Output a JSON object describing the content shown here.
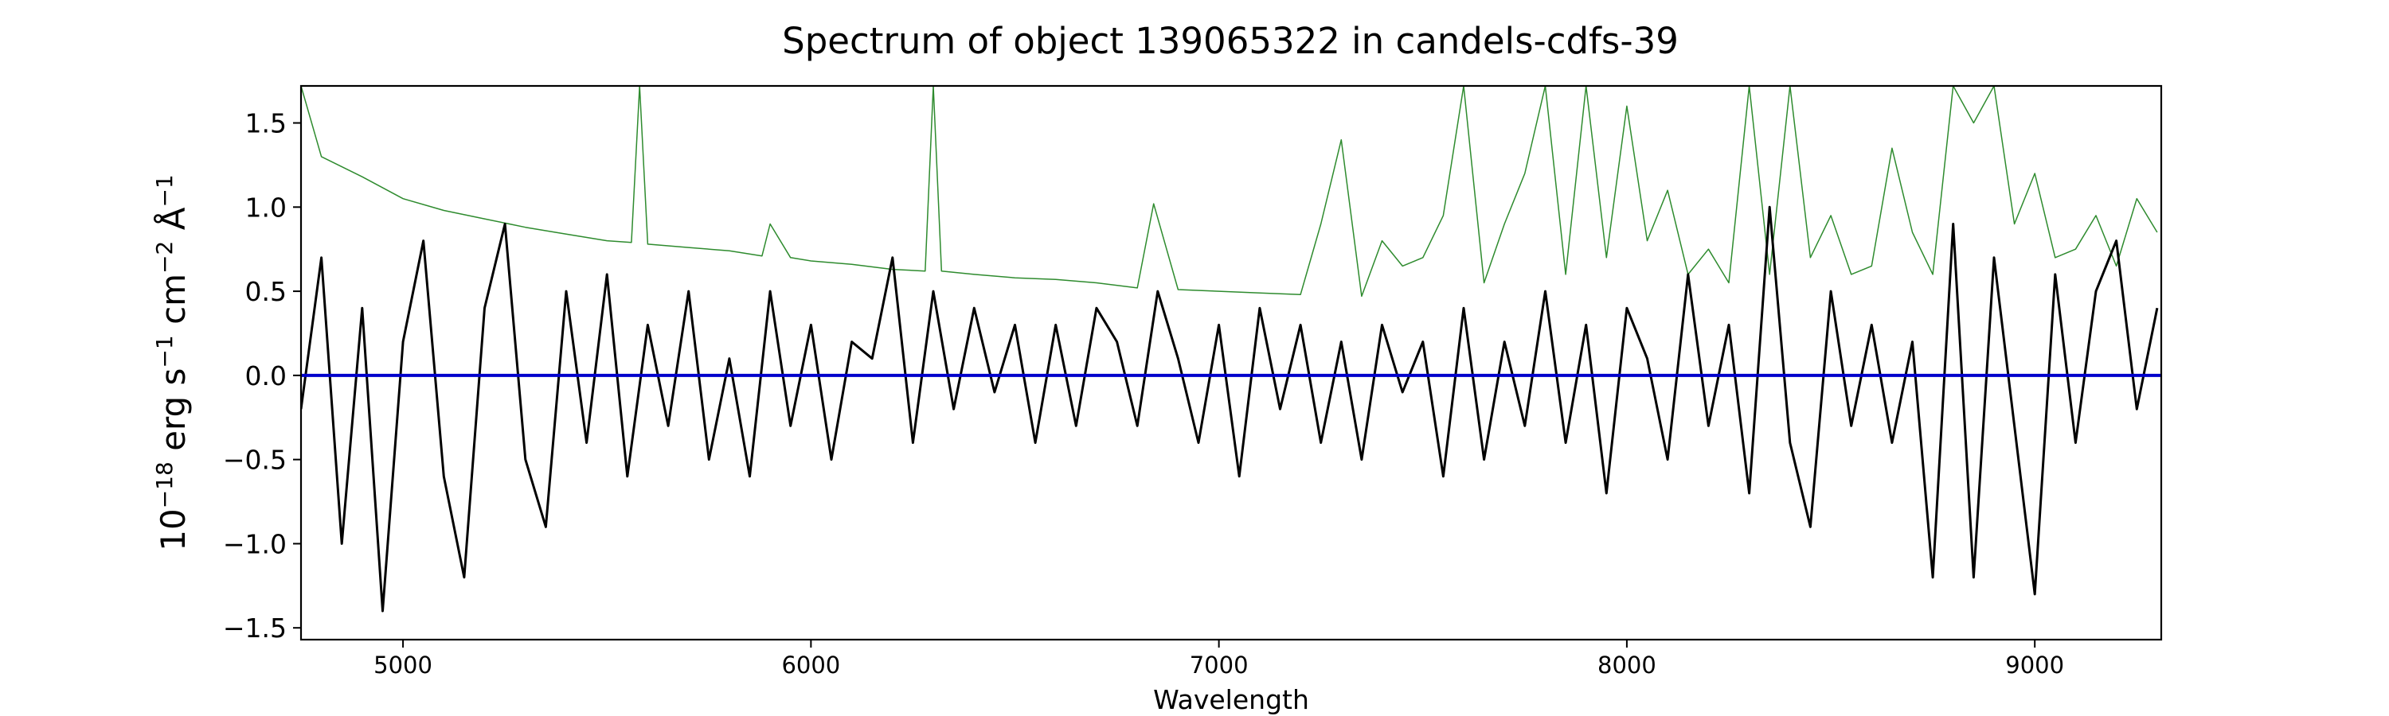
{
  "chart_data": {
    "type": "line",
    "title": "Spectrum of object 139065322 in candels-cdfs-39",
    "xlabel": "Wavelength",
    "ylabel_base": "10",
    "ylabel_exp": "−18",
    "ylabel_unit_erg": " erg s",
    "ylabel_exp_s": "−1",
    "ylabel_unit_cm": " cm",
    "ylabel_exp_cm": "−2",
    "ylabel_unit_A": " Å",
    "ylabel_exp_A": "−1",
    "xlim": [
      4750,
      9310
    ],
    "ylim": [
      -1.57,
      1.72
    ],
    "x_ticks": [
      5000,
      6000,
      7000,
      8000,
      9000
    ],
    "x_tick_labels": [
      "5000",
      "6000",
      "7000",
      "8000",
      "9000"
    ],
    "y_ticks": [
      -1.5,
      -1.0,
      -0.5,
      0.0,
      0.5,
      1.0,
      1.5
    ],
    "y_tick_labels": [
      "−1.5",
      "−1.0",
      "−0.5",
      "0.0",
      "0.5",
      "1.0",
      "1.5"
    ],
    "grid": false,
    "colors": {
      "flux": "#000000",
      "noise": "#2e8b2e",
      "zero": "#0000cc"
    },
    "series": [
      {
        "role": "flux",
        "x": [
          4750,
          4800,
          4850,
          4900,
          4950,
          5000,
          5050,
          5100,
          5150,
          5200,
          5250,
          5300,
          5350,
          5400,
          5450,
          5500,
          5550,
          5600,
          5650,
          5700,
          5750,
          5800,
          5850,
          5900,
          5950,
          6000,
          6050,
          6100,
          6150,
          6200,
          6250,
          6300,
          6350,
          6400,
          6450,
          6500,
          6550,
          6600,
          6650,
          6700,
          6750,
          6800,
          6850,
          6900,
          6950,
          7000,
          7050,
          7100,
          7150,
          7200,
          7250,
          7300,
          7350,
          7400,
          7450,
          7500,
          7550,
          7600,
          7650,
          7700,
          7750,
          7800,
          7850,
          7900,
          7950,
          8000,
          8050,
          8100,
          8150,
          8200,
          8250,
          8300,
          8350,
          8400,
          8450,
          8500,
          8550,
          8600,
          8650,
          8700,
          8750,
          8800,
          8850,
          8900,
          8950,
          9000,
          9050,
          9100,
          9150,
          9200,
          9250,
          9300
        ],
        "y": [
          -0.2,
          0.7,
          -1.0,
          0.4,
          -1.4,
          0.2,
          0.8,
          -0.6,
          -1.2,
          0.4,
          0.9,
          -0.5,
          -0.9,
          0.5,
          -0.4,
          0.6,
          -0.6,
          0.3,
          -0.3,
          0.5,
          -0.5,
          0.1,
          -0.6,
          0.5,
          -0.3,
          0.3,
          -0.5,
          0.2,
          0.1,
          0.7,
          -0.4,
          0.5,
          -0.2,
          0.4,
          -0.1,
          0.3,
          -0.4,
          0.3,
          -0.3,
          0.4,
          0.2,
          -0.3,
          0.5,
          0.1,
          -0.4,
          0.3,
          -0.6,
          0.4,
          -0.2,
          0.3,
          -0.4,
          0.2,
          -0.5,
          0.3,
          -0.1,
          0.2,
          -0.6,
          0.4,
          -0.5,
          0.2,
          -0.3,
          0.5,
          -0.4,
          0.3,
          -0.7,
          0.4,
          0.1,
          -0.5,
          0.6,
          -0.3,
          0.3,
          -0.7,
          1.0,
          -0.4,
          -0.9,
          0.5,
          -0.3,
          0.3,
          -0.4,
          0.2,
          -1.2,
          0.9,
          -1.2,
          0.7,
          -0.3,
          -1.3,
          0.6,
          -0.4,
          0.5,
          0.8,
          -0.2,
          0.4
        ]
      },
      {
        "role": "noise",
        "x": [
          4750,
          4800,
          4900,
          5000,
          5100,
          5200,
          5300,
          5400,
          5500,
          5560,
          5580,
          5600,
          5700,
          5800,
          5880,
          5900,
          5950,
          6000,
          6100,
          6200,
          6280,
          6300,
          6320,
          6400,
          6500,
          6600,
          6700,
          6800,
          6840,
          6900,
          7000,
          7100,
          7200,
          7250,
          7300,
          7350,
          7400,
          7450,
          7500,
          7550,
          7600,
          7650,
          7700,
          7750,
          7800,
          7850,
          7900,
          7950,
          8000,
          8050,
          8100,
          8150,
          8200,
          8250,
          8300,
          8350,
          8400,
          8450,
          8500,
          8550,
          8600,
          8650,
          8700,
          8750,
          8800,
          8850,
          8900,
          8950,
          9000,
          9050,
          9100,
          9150,
          9200,
          9250,
          9300
        ],
        "y": [
          1.72,
          1.3,
          1.18,
          1.05,
          0.98,
          0.93,
          0.88,
          0.84,
          0.8,
          0.79,
          1.72,
          0.78,
          0.76,
          0.74,
          0.71,
          0.9,
          0.7,
          0.68,
          0.66,
          0.63,
          0.62,
          1.72,
          0.62,
          0.6,
          0.58,
          0.57,
          0.55,
          0.52,
          1.02,
          0.51,
          0.5,
          0.49,
          0.48,
          0.9,
          1.4,
          0.47,
          0.8,
          0.65,
          0.7,
          0.95,
          1.72,
          0.55,
          0.9,
          1.2,
          1.72,
          0.6,
          1.72,
          0.7,
          1.6,
          0.8,
          1.1,
          0.6,
          0.75,
          0.55,
          1.72,
          0.6,
          1.72,
          0.7,
          0.95,
          0.6,
          0.65,
          1.35,
          0.85,
          0.6,
          1.72,
          1.5,
          1.72,
          0.9,
          1.2,
          0.7,
          0.75,
          0.95,
          0.65,
          1.05,
          0.85
        ]
      },
      {
        "role": "zero",
        "x": [
          4750,
          9310
        ],
        "y": [
          0,
          0
        ]
      }
    ]
  }
}
